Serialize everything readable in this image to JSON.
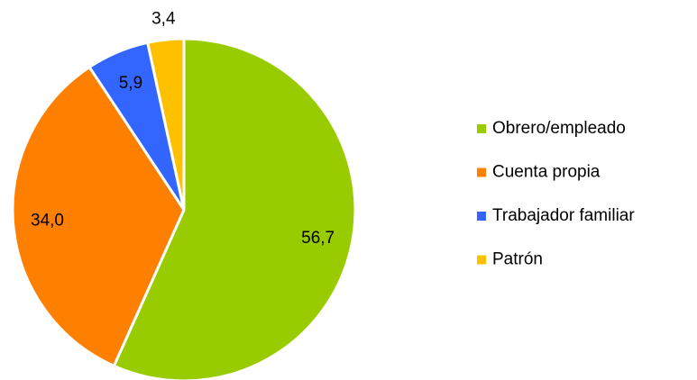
{
  "chart_data": {
    "type": "pie",
    "categories": [
      "Obrero/empleado",
      "Cuenta propia",
      "Trabajador familiar",
      "Patrón"
    ],
    "values": [
      56.7,
      34.0,
      5.9,
      3.4
    ],
    "value_labels": [
      "56,7",
      "34,0",
      "5,9",
      "3,4"
    ],
    "colors": [
      "#99cc00",
      "#ff8000",
      "#3366ff",
      "#ffc000"
    ],
    "legend": "right"
  }
}
